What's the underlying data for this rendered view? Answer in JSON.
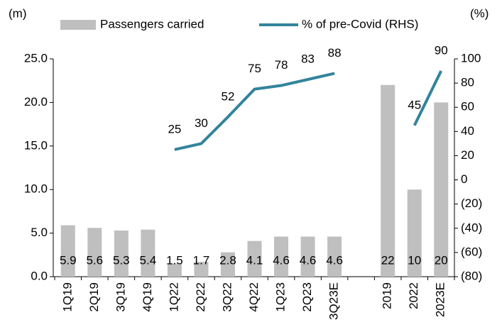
{
  "chart_data": {
    "type": "bar_line",
    "y_unit": "(m)",
    "y2_unit": "(%)",
    "categories": [
      "1Q19",
      "2Q19",
      "3Q19",
      "4Q19",
      "1Q22",
      "2Q22",
      "3Q22",
      "4Q22",
      "1Q23",
      "2Q23",
      "3Q23E",
      null,
      "2019",
      "2022",
      "2023E"
    ],
    "series": [
      {
        "name": "Passengers carried",
        "color": "#bfbfbf",
        "type": "bar",
        "values": [
          5.9,
          5.6,
          5.3,
          5.4,
          1.5,
          1.7,
          2.8,
          4.1,
          4.6,
          4.6,
          4.6,
          null,
          22,
          10,
          20
        ]
      },
      {
        "name": "% of pre-Covid (RHS)",
        "color": "#31849b",
        "type": "line",
        "axis": "y2",
        "values": [
          null,
          null,
          null,
          null,
          25,
          30,
          52,
          75,
          78,
          83,
          88,
          null,
          null,
          45,
          90
        ]
      }
    ],
    "ylim": [
      0,
      25
    ],
    "yticks": [
      {
        "value": 0,
        "label": "0.0"
      },
      {
        "value": 5,
        "label": "5.0"
      },
      {
        "value": 10,
        "label": "10.0"
      },
      {
        "value": 15,
        "label": "15.0"
      },
      {
        "value": 20,
        "label": "20.0"
      },
      {
        "value": 25,
        "label": "25.0"
      }
    ],
    "y2lim": [
      -80,
      100
    ],
    "y2ticks": [
      {
        "value": -80,
        "label": "(80)"
      },
      {
        "value": -60,
        "label": "(60)"
      },
      {
        "value": -40,
        "label": "(40)"
      },
      {
        "value": -20,
        "label": "(20)"
      },
      0,
      20,
      40,
      60,
      80,
      100
    ],
    "legend": "top"
  }
}
